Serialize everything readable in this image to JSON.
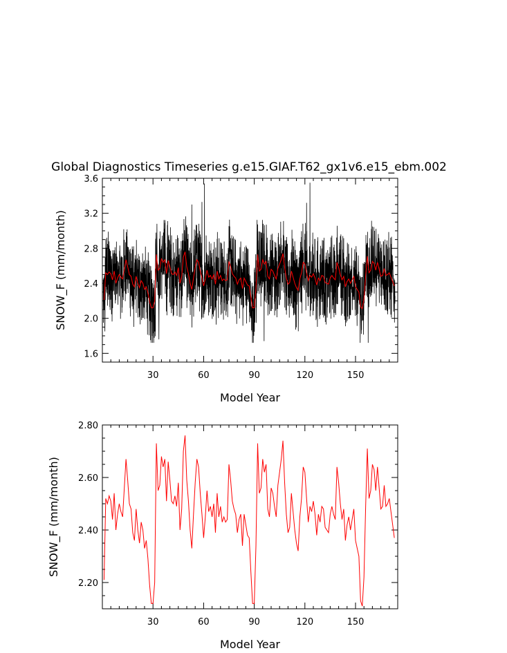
{
  "chart_data": [
    {
      "type": "line",
      "title": "Global Diagnostics Timeseries g.e15.GIAF.T62_gx1v6.e15_ebm.002",
      "xlabel": "Model Year",
      "ylabel": "SNOW_F (mm/month)",
      "xlim": [
        0,
        175
      ],
      "ylim": [
        1.5,
        3.6
      ],
      "xticks": [
        30,
        60,
        90,
        120,
        150
      ],
      "xtick_labels": [
        "30",
        "60",
        "90",
        "120",
        "150"
      ],
      "yticks": [
        1.6,
        2.0,
        2.4,
        2.8,
        3.2,
        3.6
      ],
      "ytick_labels": [
        "1.6",
        "2.0",
        "2.4",
        "2.8",
        "3.2",
        "3.6"
      ],
      "grid": false,
      "series": [
        {
          "color": "#000000",
          "sampling": "monthly",
          "note_on_values": "dense monthly series oscillating about the annual-mean curve with amplitude ~0.3-0.5 mm/month; extremes listed",
          "values_range": [
            1.72,
            3.55
          ],
          "peaks": [
            [
              60.5,
              3.54
            ],
            [
              123.0,
              3.55
            ],
            [
              59.0,
              3.33
            ],
            [
              53.0,
              3.3
            ],
            [
              121.0,
              3.32
            ]
          ],
          "troughs": [
            [
              33.5,
              1.76
            ],
            [
              95.8,
              1.74
            ],
            [
              157.5,
              1.72
            ],
            [
              1.5,
              1.85
            ]
          ]
        },
        {
          "color": "#ff0000",
          "sampling": "annual",
          "values_ref": "annual_mean"
        }
      ]
    },
    {
      "type": "line",
      "title": "",
      "xlabel": "Model Year",
      "ylabel": "SNOW_F (mm/month)",
      "xlim": [
        0,
        175
      ],
      "ylim": [
        2.1,
        2.8
      ],
      "xticks": [
        30,
        60,
        90,
        120,
        150
      ],
      "xtick_labels": [
        "30",
        "60",
        "90",
        "120",
        "150"
      ],
      "yticks": [
        2.2,
        2.4,
        2.6,
        2.8
      ],
      "ytick_labels": [
        "2.20",
        "2.40",
        "2.60",
        "2.80"
      ],
      "grid": false,
      "series": [
        {
          "color": "#ff0000",
          "sampling": "annual",
          "values_ref": "annual_mean"
        }
      ]
    }
  ],
  "annual_mean": {
    "x": [
      1,
      2,
      3,
      4,
      5,
      6,
      7,
      8,
      9,
      10,
      11,
      12,
      13,
      14,
      15,
      16,
      17,
      18,
      19,
      20,
      21,
      22,
      23,
      24,
      25,
      26,
      27,
      28,
      29,
      30,
      31,
      32,
      33,
      34,
      35,
      36,
      37,
      38,
      39,
      40,
      41,
      42,
      43,
      44,
      45,
      46,
      47,
      48,
      49,
      50,
      51,
      52,
      53,
      54,
      55,
      56,
      57,
      58,
      59,
      60,
      61,
      62,
      63,
      64,
      65,
      66,
      67,
      68,
      69,
      70,
      71,
      72,
      73,
      74,
      75,
      76,
      77,
      78,
      79,
      80,
      81,
      82,
      83,
      84,
      85,
      86,
      87,
      88,
      89,
      90,
      91,
      92,
      93,
      94,
      95,
      96,
      97,
      98,
      99,
      100,
      101,
      102,
      103,
      104,
      105,
      106,
      107,
      108,
      109,
      110,
      111,
      112,
      113,
      114,
      115,
      116,
      117,
      118,
      119,
      120,
      121,
      122,
      123,
      124,
      125,
      126,
      127,
      128,
      129,
      130,
      131,
      132,
      133,
      134,
      135,
      136,
      137,
      138,
      139,
      140,
      141,
      142,
      143,
      144,
      145,
      146,
      147,
      148,
      149,
      150,
      151,
      152,
      153,
      154,
      155,
      156,
      157,
      158,
      159,
      160,
      161,
      162,
      163,
      164,
      165,
      166,
      167,
      168,
      169,
      170,
      171,
      172,
      173
    ],
    "y": [
      2.21,
      2.52,
      2.5,
      2.53,
      2.51,
      2.44,
      2.54,
      2.4,
      2.46,
      2.5,
      2.47,
      2.45,
      2.56,
      2.67,
      2.59,
      2.5,
      2.48,
      2.39,
      2.36,
      2.48,
      2.4,
      2.35,
      2.43,
      2.4,
      2.33,
      2.36,
      2.29,
      2.19,
      2.12,
      2.12,
      2.2,
      2.73,
      2.55,
      2.57,
      2.68,
      2.64,
      2.67,
      2.51,
      2.66,
      2.59,
      2.51,
      2.5,
      2.53,
      2.49,
      2.58,
      2.4,
      2.48,
      2.7,
      2.76,
      2.59,
      2.51,
      2.4,
      2.33,
      2.46,
      2.58,
      2.67,
      2.64,
      2.54,
      2.46,
      2.37,
      2.45,
      2.55,
      2.47,
      2.49,
      2.45,
      2.5,
      2.39,
      2.54,
      2.45,
      2.49,
      2.43,
      2.45,
      2.43,
      2.44,
      2.65,
      2.59,
      2.51,
      2.48,
      2.46,
      2.39,
      2.44,
      2.46,
      2.34,
      2.46,
      2.42,
      2.38,
      2.37,
      2.24,
      2.12,
      2.12,
      2.34,
      2.73,
      2.54,
      2.56,
      2.67,
      2.62,
      2.65,
      2.48,
      2.45,
      2.56,
      2.54,
      2.49,
      2.45,
      2.57,
      2.62,
      2.67,
      2.74,
      2.58,
      2.46,
      2.39,
      2.41,
      2.54,
      2.47,
      2.4,
      2.35,
      2.32,
      2.45,
      2.52,
      2.64,
      2.62,
      2.52,
      2.43,
      2.49,
      2.47,
      2.51,
      2.46,
      2.38,
      2.46,
      2.43,
      2.49,
      2.48,
      2.41,
      2.4,
      2.39,
      2.46,
      2.49,
      2.46,
      2.44,
      2.64,
      2.58,
      2.5,
      2.44,
      2.48,
      2.36,
      2.42,
      2.45,
      2.4,
      2.44,
      2.48,
      2.36,
      2.33,
      2.3,
      2.13,
      2.11,
      2.22,
      2.49,
      2.71,
      2.52,
      2.55,
      2.65,
      2.63,
      2.55,
      2.64,
      2.56,
      2.48,
      2.49,
      2.57,
      2.49,
      2.5,
      2.52,
      2.47,
      2.42,
      2.37
    ]
  }
}
